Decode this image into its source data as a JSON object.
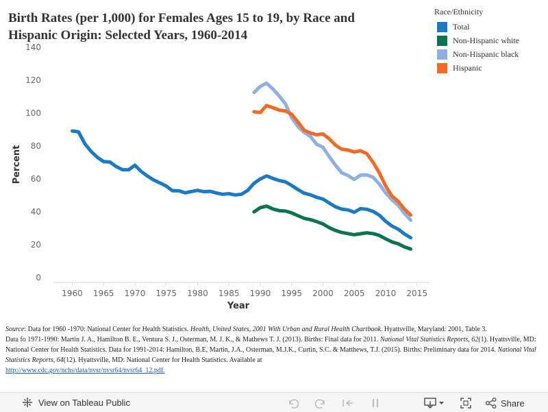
{
  "chart_data": {
    "type": "line",
    "title": "Birth Rates (per 1,000) for Females Ages 15 to 19, by Race and Hispanic Origin: Selected Years, 1960-2014",
    "xlabel": "Year",
    "ylabel": "Percent",
    "xlim": [
      1957,
      2017
    ],
    "ylim": [
      -3,
      140
    ],
    "xticks": [
      1960,
      1965,
      1970,
      1975,
      1980,
      1985,
      1990,
      1995,
      2000,
      2005,
      2010,
      2015
    ],
    "yticks": [
      0,
      20,
      40,
      60,
      80,
      100,
      120,
      140
    ],
    "grid": false,
    "legend_title": "Race/Ethnicity",
    "legend_position": "top-right",
    "series": [
      {
        "name": "Total",
        "color": "#1b7ac3",
        "x": [
          1960,
          1961,
          1962,
          1963,
          1964,
          1965,
          1966,
          1967,
          1968,
          1969,
          1970,
          1971,
          1972,
          1973,
          1974,
          1975,
          1976,
          1977,
          1978,
          1979,
          1980,
          1981,
          1982,
          1983,
          1984,
          1985,
          1986,
          1987,
          1988,
          1989,
          1990,
          1991,
          1992,
          1993,
          1994,
          1995,
          1996,
          1997,
          1998,
          1999,
          2000,
          2001,
          2002,
          2003,
          2004,
          2005,
          2006,
          2007,
          2008,
          2009,
          2010,
          2011,
          2012,
          2013,
          2014
        ],
        "values": [
          89.1,
          88.6,
          81.4,
          76.7,
          73.1,
          70.5,
          70.3,
          67.5,
          65.6,
          65.5,
          68.3,
          64.5,
          61.7,
          59.3,
          57.5,
          55.6,
          52.8,
          52.8,
          51.5,
          52.3,
          53.0,
          52.2,
          52.4,
          51.4,
          50.6,
          51.0,
          50.2,
          50.6,
          53.0,
          57.3,
          59.9,
          61.8,
          60.3,
          59.0,
          58.2,
          56.0,
          53.5,
          51.3,
          50.3,
          48.8,
          47.7,
          45.3,
          43.0,
          41.6,
          41.1,
          39.7,
          41.9,
          41.5,
          40.2,
          37.9,
          34.2,
          31.3,
          29.4,
          26.5,
          24.2
        ]
      },
      {
        "name": "Non-Hispanic white",
        "color": "#0a7352",
        "x": [
          1989,
          1990,
          1991,
          1992,
          1993,
          1994,
          1995,
          1996,
          1997,
          1998,
          1999,
          2000,
          2001,
          2002,
          2003,
          2004,
          2005,
          2006,
          2007,
          2008,
          2009,
          2010,
          2011,
          2012,
          2013,
          2014
        ],
        "values": [
          39.9,
          42.5,
          43.4,
          41.7,
          40.7,
          40.4,
          39.3,
          37.6,
          36.0,
          35.2,
          34.0,
          32.6,
          30.3,
          28.6,
          27.4,
          26.7,
          26.0,
          26.6,
          27.2,
          26.7,
          25.6,
          23.5,
          21.7,
          20.5,
          18.6,
          17.3
        ]
      },
      {
        "name": "Non-Hispanic black",
        "color": "#8fb0e0",
        "x": [
          1989,
          1990,
          1991,
          1992,
          1993,
          1994,
          1995,
          1996,
          1997,
          1998,
          1999,
          2000,
          2001,
          2002,
          2003,
          2004,
          2005,
          2006,
          2007,
          2008,
          2009,
          2010,
          2011,
          2012,
          2013,
          2014
        ],
        "values": [
          112.5,
          116.2,
          118.2,
          114.7,
          110.5,
          105.7,
          97.2,
          91.9,
          88.3,
          85.7,
          81.0,
          79.2,
          73.5,
          68.3,
          63.7,
          62.0,
          59.6,
          62.3,
          62.4,
          61.0,
          56.8,
          51.5,
          47.3,
          43.9,
          39.0,
          34.9
        ]
      },
      {
        "name": "Hispanic",
        "color": "#f26b24",
        "x": [
          1989,
          1990,
          1991,
          1992,
          1993,
          1994,
          1995,
          1996,
          1997,
          1998,
          1999,
          2000,
          2001,
          2002,
          2003,
          2004,
          2005,
          2006,
          2007,
          2008,
          2009,
          2010,
          2011,
          2012,
          2013,
          2014
        ],
        "values": [
          100.8,
          100.3,
          104.6,
          103.3,
          101.8,
          101.3,
          99.3,
          94.6,
          89.6,
          87.9,
          86.8,
          87.3,
          84.4,
          80.5,
          78.0,
          77.5,
          76.3,
          77.1,
          75.3,
          70.1,
          63.6,
          55.7,
          49.6,
          46.3,
          41.7,
          38.0
        ]
      }
    ]
  },
  "source": {
    "line1_label": "Source",
    "line1_text_a": ": Data for 1960 -1970: National Center for Health Statistics. ",
    "line1_italic_a": "Health, United States, 2001 With Urban and Rural Health Chartbook",
    "line1_text_b": ". Hyattsville, Maryland: 2001, Table 3.",
    "line2_text_a": "Data fo 1971-1990:  Martin J. A., Hamilton B. E., Ventura S. J., Osterman, M. J. K., & Mathews T. J. (2013). Births: Final data for 2011. ",
    "line2_italic_a": "National Vital Statistics Reports, 62",
    "line2_text_b": "(1). Hyattsville, MD: National Center for Health Statistics. Data for 1991-2014: Hamilton, B.E, Martin, J.A., Osterman, M.J.K., Curtin, S.C. & Matthews, T.J. (2015). Births: Preliminary data for 2014. ",
    "line2_italic_b": "National Vital Statistics Reports, 64",
    "line2_text_c": "(12). Hyattsville, MD: National Center for Health Statistics. Available at ",
    "link_text": "http://www.cdc.gov/nchs/data/nvsr/nvsr64/nvsr64_12.pdf."
  },
  "footer": {
    "view_label": "View on Tableau Public",
    "share_label": "Share",
    "icon_color": "#555555"
  }
}
